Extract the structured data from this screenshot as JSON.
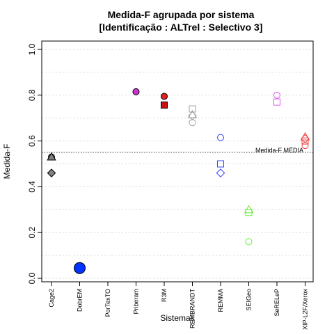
{
  "chart_data": {
    "type": "scatter",
    "title": "Medida-F agrupada por sistema",
    "subtitle": "[Identificação : ALTrel : Selectivo 3]",
    "xlabel": "Sistemas",
    "ylabel": "Medida-F",
    "ylim": [
      0,
      1
    ],
    "yticks": [
      "0.0",
      "0.2",
      "0.4",
      "0.6",
      "0.8",
      "1.0"
    ],
    "grid": "horizontal dotted",
    "categories": [
      "Cage2",
      "DobrEM",
      "PorTexTO",
      "Priberam",
      "R3M",
      "REMBRANDT",
      "REMMA",
      "SEIGeo",
      "SeRELeP",
      "XIP-L2F/Xerox"
    ],
    "reference_line": {
      "value": 0.55,
      "label": "Medida-F MÉDIA"
    },
    "points": [
      {
        "category": "Cage2",
        "y": 0.53,
        "shape": "circle",
        "color": "#808080",
        "filled": true,
        "size": "normal"
      },
      {
        "category": "Cage2",
        "y": 0.53,
        "shape": "triangle",
        "color": "#808080",
        "filled": true,
        "size": "normal"
      },
      {
        "category": "Cage2",
        "y": 0.46,
        "shape": "diamond",
        "color": "#808080",
        "filled": true,
        "size": "normal"
      },
      {
        "category": "DobrEM",
        "y": 0.045,
        "shape": "circle",
        "color": "#0033ff",
        "filled": true,
        "size": "large"
      },
      {
        "category": "Priberam",
        "y": 0.815,
        "shape": "circle",
        "color": "#cc33cc",
        "filled": true,
        "size": "normal"
      },
      {
        "category": "R3M",
        "y": 0.795,
        "shape": "circle",
        "color": "#dd2222",
        "filled": true,
        "size": "normal"
      },
      {
        "category": "R3M",
        "y": 0.757,
        "shape": "square",
        "color": "#cc1111",
        "filled": true,
        "size": "normal"
      },
      {
        "category": "REMBRANDT",
        "y": 0.74,
        "shape": "square",
        "color": "#a0a0a0",
        "filled": false,
        "size": "normal"
      },
      {
        "category": "REMBRANDT",
        "y": 0.715,
        "shape": "triangle",
        "color": "#a0a0a0",
        "filled": false,
        "size": "normal"
      },
      {
        "category": "REMBRANDT",
        "y": 0.71,
        "shape": "diamond",
        "color": "#a0a0a0",
        "filled": false,
        "size": "normal"
      },
      {
        "category": "REMBRANDT",
        "y": 0.68,
        "shape": "circle",
        "color": "#a0a0a0",
        "filled": false,
        "size": "normal"
      },
      {
        "category": "REMMA",
        "y": 0.615,
        "shape": "circle",
        "color": "#3344ff",
        "filled": false,
        "size": "normal"
      },
      {
        "category": "REMMA",
        "y": 0.5,
        "shape": "square",
        "color": "#3344ff",
        "filled": false,
        "size": "normal"
      },
      {
        "category": "REMMA",
        "y": 0.46,
        "shape": "diamond",
        "color": "#3344ff",
        "filled": false,
        "size": "normal"
      },
      {
        "category": "SEIGeo",
        "y": 0.3,
        "shape": "triangle",
        "color": "#66ee33",
        "filled": false,
        "size": "normal"
      },
      {
        "category": "SEIGeo",
        "y": 0.288,
        "shape": "square",
        "color": "#66ee33",
        "filled": false,
        "size": "normal"
      },
      {
        "category": "SEIGeo",
        "y": 0.16,
        "shape": "circle",
        "color": "#66ee33",
        "filled": false,
        "size": "normal"
      },
      {
        "category": "SeRELeP",
        "y": 0.8,
        "shape": "circle",
        "color": "#dd55ee",
        "filled": false,
        "size": "normal"
      },
      {
        "category": "SeRELeP",
        "y": 0.77,
        "shape": "square",
        "color": "#dd55ee",
        "filled": false,
        "size": "normal"
      },
      {
        "category": "XIP-L2F/Xerox",
        "y": 0.618,
        "shape": "triangle",
        "color": "#ee4444",
        "filled": false,
        "size": "normal"
      },
      {
        "category": "XIP-L2F/Xerox",
        "y": 0.61,
        "shape": "diamond",
        "color": "#ee4444",
        "filled": false,
        "size": "normal"
      },
      {
        "category": "XIP-L2F/Xerox",
        "y": 0.6,
        "shape": "square",
        "color": "#ee4444",
        "filled": false,
        "size": "normal"
      },
      {
        "category": "XIP-L2F/Xerox",
        "y": 0.58,
        "shape": "circle",
        "color": "#ee4444",
        "filled": false,
        "size": "normal"
      }
    ]
  }
}
